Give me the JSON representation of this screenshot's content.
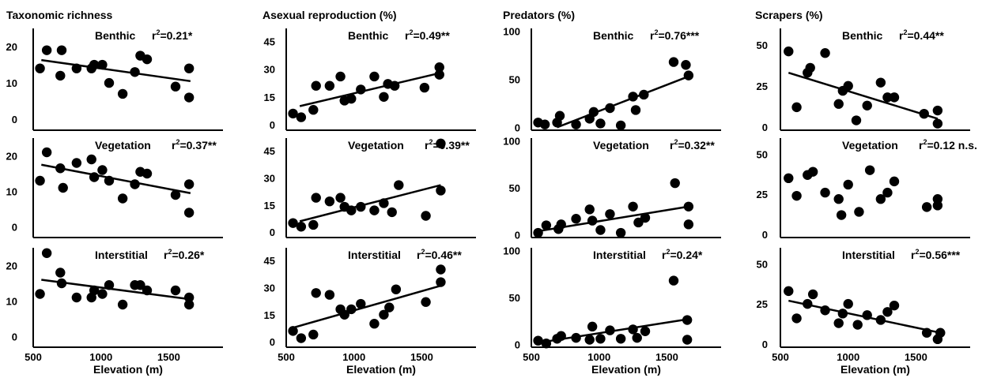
{
  "xlabel": "Elevation (m)",
  "x_ticks": [
    500,
    1000,
    1500
  ],
  "xlim": [
    500,
    1900
  ],
  "columns": [
    {
      "title": "Taxonomic richness",
      "yticks": [
        0,
        10,
        20
      ],
      "ylim": [
        -3,
        25
      ]
    },
    {
      "title": "Asexual reproduction (%)",
      "yticks": [
        0,
        15,
        30,
        45
      ],
      "ylim": [
        -3,
        52
      ]
    },
    {
      "title": "Predators (%)",
      "yticks": [
        0,
        50,
        100
      ],
      "ylim": [
        -3,
        103
      ]
    },
    {
      "title": "Scrapers (%)",
      "yticks": [
        0,
        25,
        50
      ],
      "ylim": [
        -2,
        60
      ]
    }
  ],
  "chart_data": [
    {
      "type": "scatter",
      "title": "Taxonomic richness",
      "panel": "Benthic",
      "r2": {
        "prefix": "r",
        "sup": "2",
        "value": "=0.21*"
      },
      "ylim": [
        -3,
        25
      ],
      "trend": [
        [
          560,
          16.3
        ],
        [
          1660,
          10.5
        ]
      ],
      "x": [
        550,
        600,
        700,
        710,
        820,
        930,
        950,
        1010,
        1060,
        1160,
        1250,
        1290,
        1340,
        1550,
        1650,
        1650
      ],
      "y": [
        14,
        19,
        12,
        19,
        14,
        14,
        15,
        15,
        10,
        7,
        13,
        17.5,
        16.5,
        9,
        14,
        6
      ]
    },
    {
      "type": "scatter",
      "title": "Asexual reproduction (%)",
      "panel": "Benthic",
      "r2": {
        "prefix": "r",
        "sup": "2",
        "value": "=0.49**"
      },
      "ylim": [
        -3,
        52
      ],
      "trend": [
        [
          600,
          10
        ],
        [
          1640,
          28
        ]
      ],
      "x": [
        550,
        610,
        700,
        720,
        820,
        900,
        930,
        980,
        1050,
        1150,
        1220,
        1250,
        1300,
        1520,
        1630,
        1630
      ],
      "y": [
        6,
        4,
        8,
        21,
        21,
        26,
        13,
        14,
        19,
        26,
        15,
        22,
        21,
        20,
        31,
        27
      ]
    },
    {
      "type": "scatter",
      "title": "Predators (%)",
      "panel": "Benthic",
      "r2": {
        "prefix": "r",
        "sup": "2",
        "value": "=0.76***"
      },
      "ylim": [
        -3,
        103
      ],
      "trend": [
        [
          690,
          0
        ],
        [
          1660,
          53
        ]
      ],
      "x": [
        550,
        600,
        690,
        710,
        830,
        930,
        960,
        1010,
        1080,
        1160,
        1250,
        1270,
        1330,
        1550,
        1640,
        1660
      ],
      "y": [
        5,
        3,
        5,
        12,
        3,
        9,
        16,
        4,
        20,
        2,
        32,
        18,
        34,
        68,
        65,
        54
      ]
    },
    {
      "type": "scatter",
      "title": "Scrapers (%)",
      "panel": "Benthic",
      "r2": {
        "prefix": "r",
        "sup": "2",
        "value": "=0.44**"
      },
      "ylim": [
        -2,
        60
      ],
      "trend": [
        [
          560,
          33
        ],
        [
          1660,
          5
        ]
      ],
      "x": [
        560,
        620,
        700,
        720,
        830,
        930,
        960,
        1000,
        1060,
        1140,
        1240,
        1290,
        1340,
        1560,
        1660,
        1660
      ],
      "y": [
        46,
        12,
        33,
        36,
        45,
        14,
        22,
        25,
        4,
        13,
        27,
        18,
        18,
        8,
        10,
        2
      ]
    },
    {
      "type": "scatter",
      "title": "Taxonomic richness",
      "panel": "Vegetation",
      "r2": {
        "prefix": "r",
        "sup": "2",
        "value": "=0.37**"
      },
      "ylim": [
        -3,
        25
      ],
      "trend": [
        [
          560,
          17.5
        ],
        [
          1660,
          9.5
        ]
      ],
      "x": [
        550,
        600,
        700,
        720,
        820,
        930,
        950,
        1010,
        1060,
        1160,
        1250,
        1290,
        1340,
        1550,
        1650,
        1650
      ],
      "y": [
        13,
        21,
        16.5,
        11,
        18,
        19,
        14,
        16,
        13,
        8,
        12,
        15.5,
        15,
        9,
        12,
        4
      ]
    },
    {
      "type": "scatter",
      "title": "Asexual reproduction (%)",
      "panel": "Vegetation",
      "r2": {
        "prefix": "r",
        "sup": "2",
        "value": "=0.39**"
      },
      "ylim": [
        -3,
        52
      ],
      "trend": [
        [
          600,
          6
        ],
        [
          1640,
          26
        ]
      ],
      "x": [
        550,
        610,
        700,
        720,
        820,
        900,
        930,
        980,
        1050,
        1150,
        1220,
        1280,
        1330,
        1530,
        1640,
        1640
      ],
      "y": [
        5,
        3,
        4,
        19,
        17,
        19,
        14,
        12,
        14,
        12,
        16,
        11,
        26,
        9,
        49,
        23
      ]
    },
    {
      "type": "scatter",
      "title": "Predators (%)",
      "panel": "Vegetation",
      "r2": {
        "prefix": "r",
        "sup": "2",
        "value": "=0.32**"
      },
      "ylim": [
        -3,
        103
      ],
      "trend": [
        [
          560,
          4
        ],
        [
          1660,
          30
        ]
      ],
      "x": [
        550,
        610,
        700,
        720,
        830,
        930,
        950,
        1010,
        1080,
        1160,
        1250,
        1290,
        1340,
        1560,
        1660,
        1660
      ],
      "y": [
        2,
        10,
        6,
        11,
        17,
        27,
        15,
        5,
        22,
        2,
        30,
        13,
        18,
        55,
        30,
        11
      ]
    },
    {
      "type": "scatter",
      "title": "Scrapers (%)",
      "panel": "Vegetation",
      "r2": {
        "prefix": "r",
        "sup": "2",
        "value": "=0.12 n.s."
      },
      "ylim": [
        -2,
        60
      ],
      "trend": null,
      "x": [
        560,
        620,
        700,
        740,
        830,
        930,
        950,
        1000,
        1080,
        1160,
        1240,
        1290,
        1340,
        1580,
        1660,
        1660
      ],
      "y": [
        35,
        24,
        37,
        39,
        26,
        22,
        12,
        31,
        14,
        40,
        22,
        26,
        33,
        17,
        22,
        18
      ]
    },
    {
      "type": "scatter",
      "title": "Taxonomic richness",
      "panel": "Interstitial",
      "r2": {
        "prefix": "r",
        "sup": "2",
        "value": "=0.26*"
      },
      "ylim": [
        -3,
        25
      ],
      "trend": [
        [
          560,
          16
        ],
        [
          1660,
          10.5
        ]
      ],
      "x": [
        550,
        600,
        700,
        710,
        820,
        930,
        950,
        1010,
        1060,
        1160,
        1250,
        1290,
        1340,
        1550,
        1650,
        1650
      ],
      "y": [
        12,
        23.5,
        18,
        15,
        11,
        11,
        13,
        12,
        14.5,
        9,
        14.5,
        14.5,
        13,
        13,
        11,
        9
      ]
    },
    {
      "type": "scatter",
      "title": "Asexual reproduction (%)",
      "panel": "Interstitial",
      "r2": {
        "prefix": "r",
        "sup": "2",
        "value": "=0.46**"
      },
      "ylim": [
        -3,
        52
      ],
      "trend": [
        [
          560,
          8
        ],
        [
          1640,
          31
        ]
      ],
      "x": [
        550,
        610,
        700,
        720,
        820,
        900,
        930,
        980,
        1050,
        1150,
        1220,
        1260,
        1310,
        1530,
        1640,
        1640
      ],
      "y": [
        6,
        2,
        4,
        27,
        26,
        18,
        15,
        18,
        21,
        10,
        15,
        19,
        29,
        22,
        40,
        33
      ]
    },
    {
      "type": "scatter",
      "title": "Predators (%)",
      "panel": "Interstitial",
      "r2": {
        "prefix": "r",
        "sup": "2",
        "value": "=0.24*"
      },
      "ylim": [
        -3,
        103
      ],
      "trend": [
        [
          560,
          2
        ],
        [
          1660,
          27
        ]
      ],
      "x": [
        550,
        610,
        690,
        720,
        830,
        930,
        950,
        1010,
        1080,
        1160,
        1250,
        1280,
        1340,
        1550,
        1650,
        1650
      ],
      "y": [
        4,
        1,
        6,
        9,
        7,
        5,
        19,
        6,
        15,
        6,
        16,
        7,
        14,
        68,
        26,
        5
      ]
    },
    {
      "type": "scatter",
      "title": "Scrapers (%)",
      "panel": "Interstitial",
      "r2": {
        "prefix": "r",
        "sup": "2",
        "value": "=0.56***"
      },
      "ylim": [
        -2,
        60
      ],
      "trend": [
        [
          560,
          27
        ],
        [
          1680,
          7
        ]
      ],
      "x": [
        560,
        620,
        700,
        740,
        830,
        930,
        960,
        1000,
        1070,
        1140,
        1240,
        1290,
        1340,
        1580,
        1660,
        1680
      ],
      "y": [
        33,
        16,
        25,
        31,
        21,
        13,
        19,
        25,
        12,
        18,
        15,
        20,
        24,
        7,
        3,
        7
      ]
    }
  ]
}
